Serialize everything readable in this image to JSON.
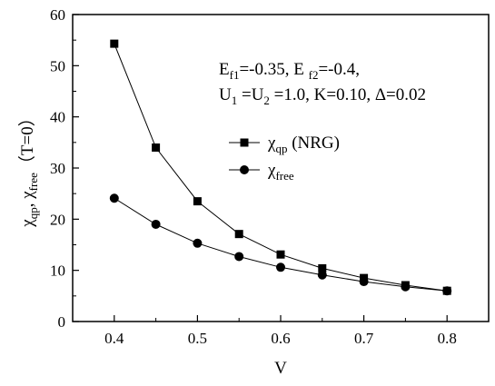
{
  "chart_data": {
    "type": "line",
    "x": [
      0.4,
      0.45,
      0.5,
      0.55,
      0.6,
      0.65,
      0.7,
      0.75,
      0.8
    ],
    "series": [
      {
        "name": "χqp (NRG)",
        "marker": "square",
        "values": [
          54.3,
          34.0,
          23.5,
          17.1,
          13.1,
          10.4,
          8.5,
          7.1,
          6.0
        ]
      },
      {
        "name": "χfree",
        "marker": "circle",
        "values": [
          24.1,
          19.0,
          15.3,
          12.7,
          10.6,
          9.1,
          7.8,
          6.8,
          6.0
        ]
      }
    ],
    "xlabel": "V",
    "ylabel": "χqp, χfree（T=0）",
    "xlim": [
      0.35,
      0.85
    ],
    "ylim": [
      0,
      60
    ],
    "xticks": [
      "0.4",
      "0.5",
      "0.6",
      "0.7",
      "0.8"
    ],
    "yticks": [
      "0",
      "10",
      "20",
      "30",
      "40",
      "50",
      "60"
    ],
    "grid": false,
    "legend_position": "center-right",
    "annotation": {
      "line1": "Ef1=-0.35, E f2=-0.4,",
      "line2": "U1 =U2 =1.0, K=0.10, Δ=0.02"
    },
    "colors": {
      "line": "#000000",
      "marker": "#000000",
      "background": "#ffffff"
    }
  }
}
